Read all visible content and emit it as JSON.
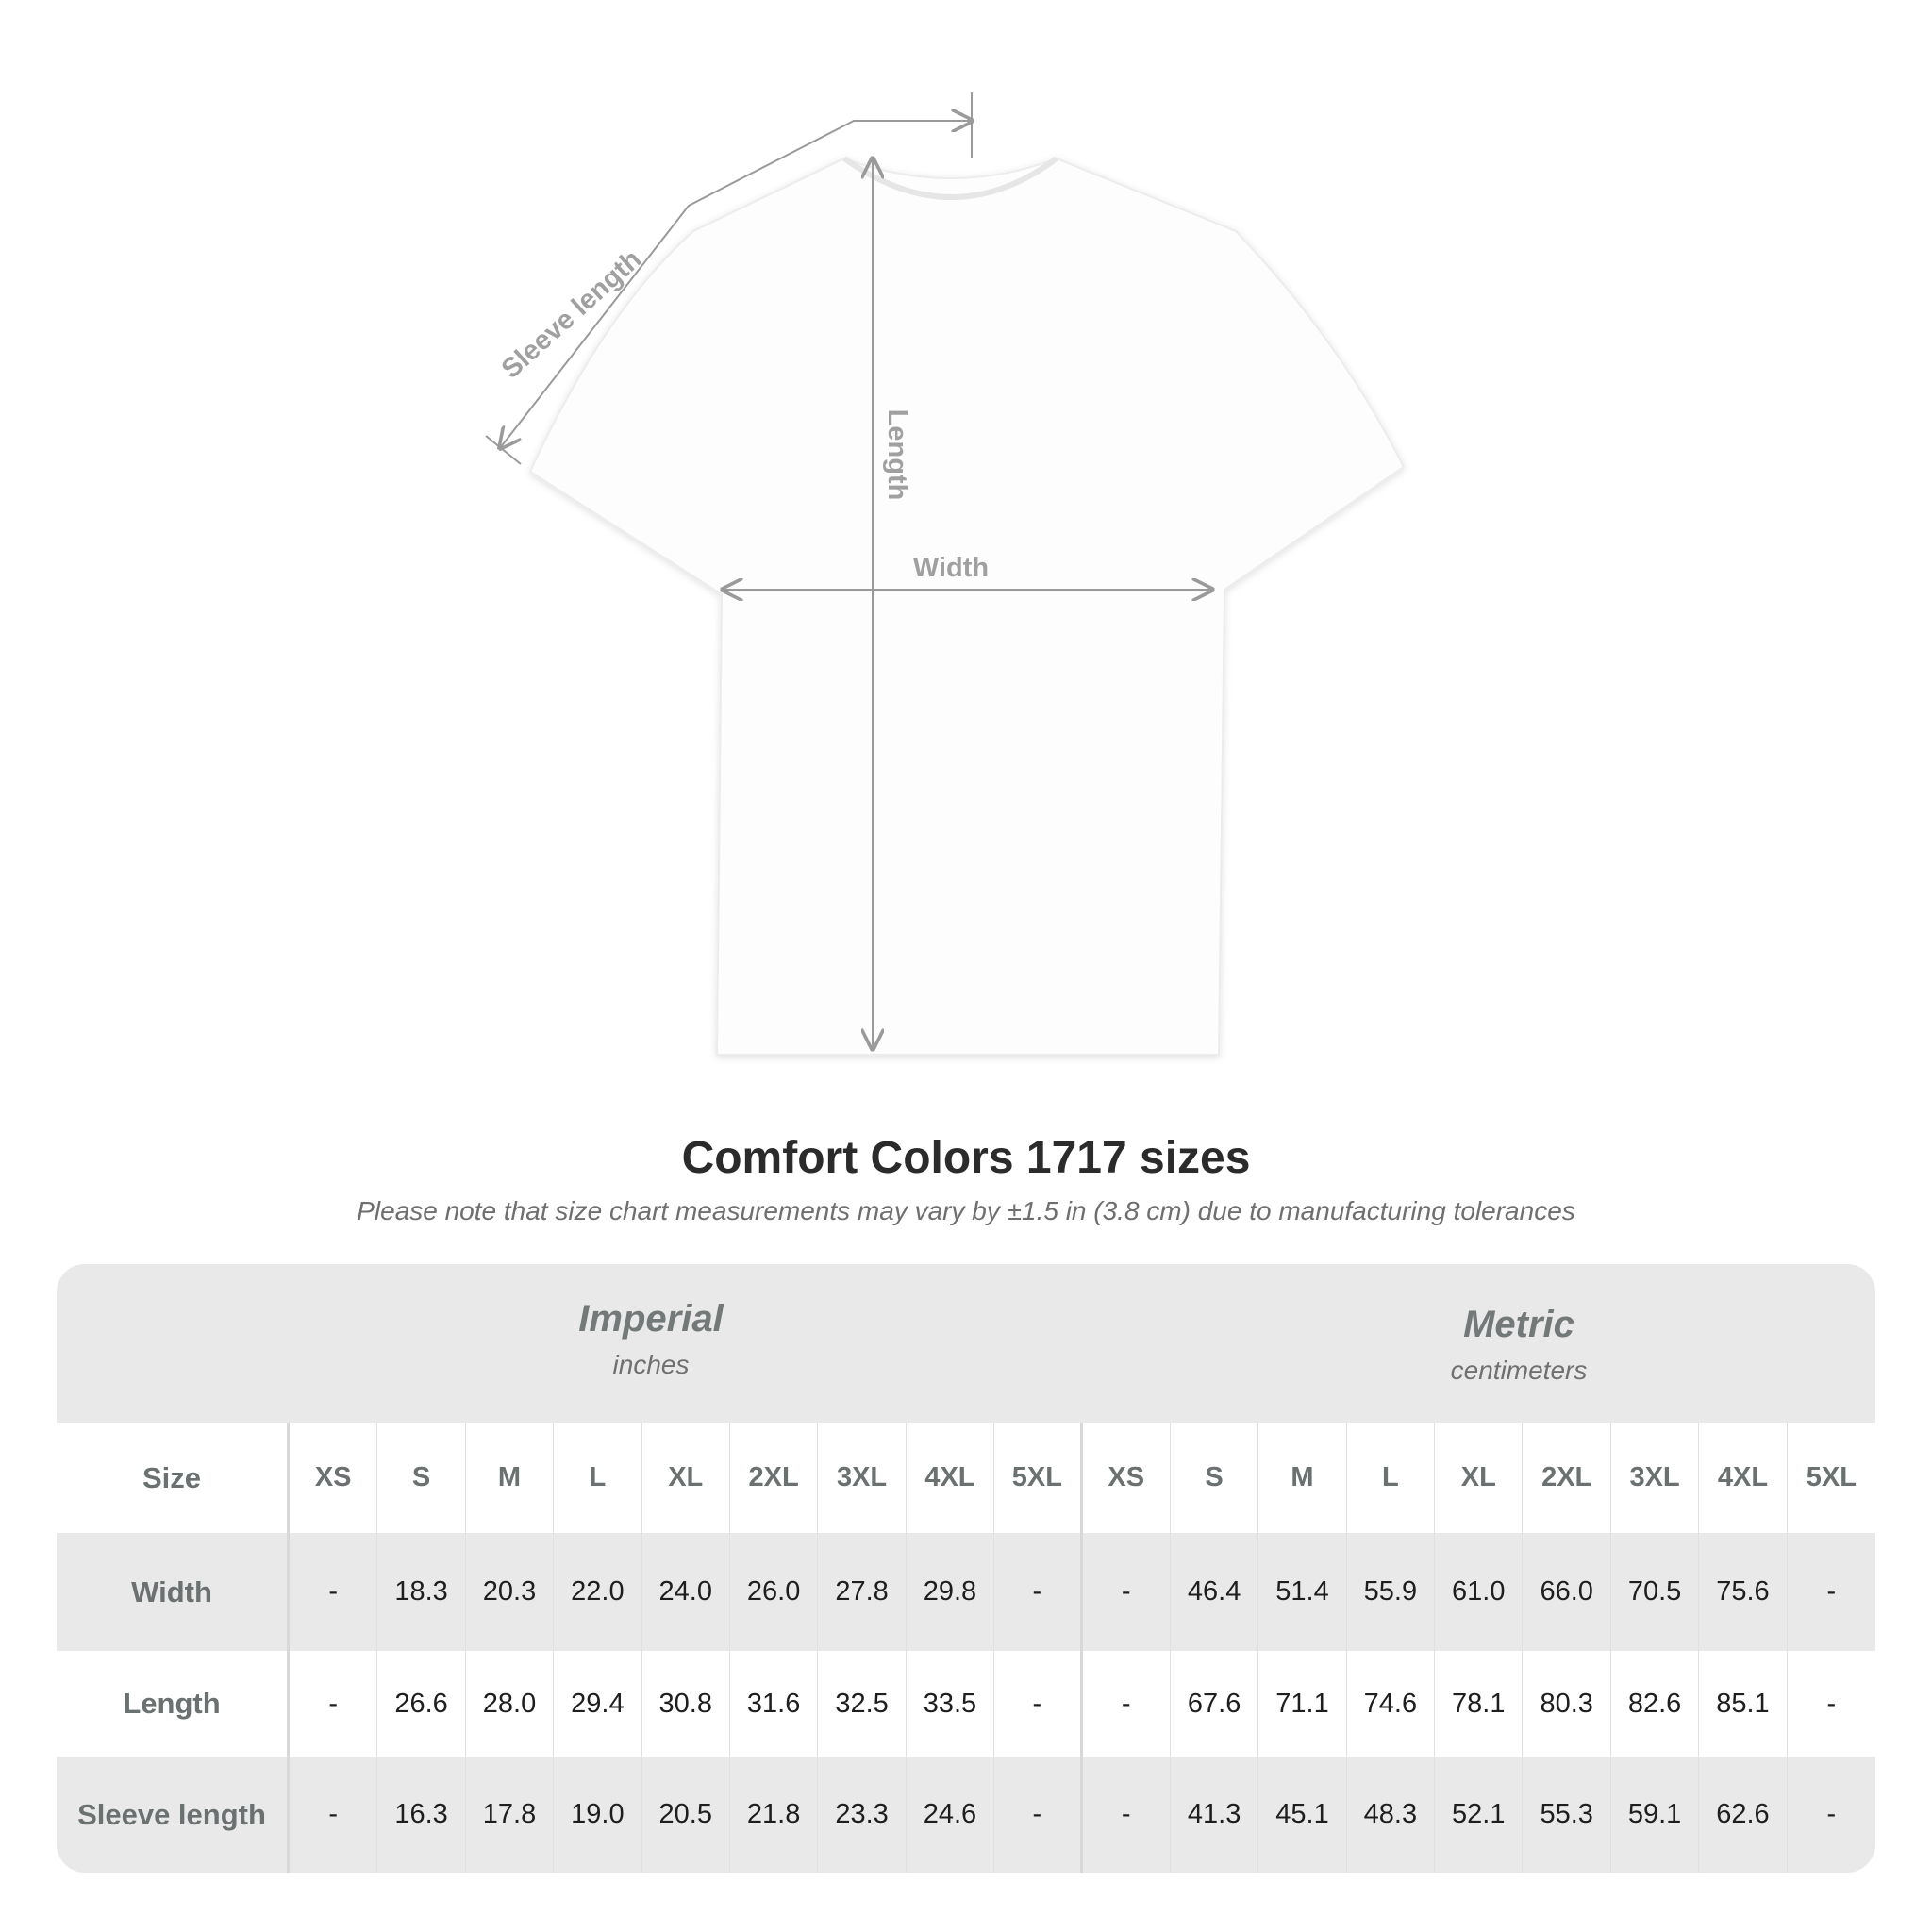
{
  "diagram": {
    "labels": {
      "sleeve": "Sleeve length",
      "length": "Length",
      "width": "Width"
    },
    "colors": {
      "arrow": "#9a9a9a",
      "shirt": "#ffffff"
    }
  },
  "title": "Comfort Colors 1717 sizes",
  "subtitle": "Please note that size chart measurements may vary by ±1.5 in (3.8 cm) due to manufacturing tolerances",
  "table": {
    "imperial": {
      "name": "Imperial",
      "unit": "inches"
    },
    "metric": {
      "name": "Metric",
      "unit": "centimeters"
    },
    "size_label": "Size",
    "sizes": [
      "XS",
      "S",
      "M",
      "L",
      "XL",
      "2XL",
      "3XL",
      "4XL",
      "5XL"
    ],
    "rows": [
      {
        "label": "Width",
        "imperial": [
          "-",
          "18.3",
          "20.3",
          "22.0",
          "24.0",
          "26.0",
          "27.8",
          "29.8",
          "-"
        ],
        "metric": [
          "-",
          "46.4",
          "51.4",
          "55.9",
          "61.0",
          "66.0",
          "70.5",
          "75.6",
          "-"
        ]
      },
      {
        "label": "Length",
        "imperial": [
          "-",
          "26.6",
          "28.0",
          "29.4",
          "30.8",
          "31.6",
          "32.5",
          "33.5",
          "-"
        ],
        "metric": [
          "-",
          "67.6",
          "71.1",
          "74.6",
          "78.1",
          "80.3",
          "82.6",
          "85.1",
          "-"
        ]
      },
      {
        "label": "Sleeve length",
        "imperial": [
          "-",
          "16.3",
          "17.8",
          "19.0",
          "20.5",
          "21.8",
          "23.3",
          "24.6",
          "-"
        ],
        "metric": [
          "-",
          "41.3",
          "45.1",
          "48.3",
          "52.1",
          "55.3",
          "59.1",
          "62.6",
          "-"
        ]
      }
    ],
    "colors": {
      "band": "#e9e9e9",
      "header_text": "#6b7070"
    }
  }
}
